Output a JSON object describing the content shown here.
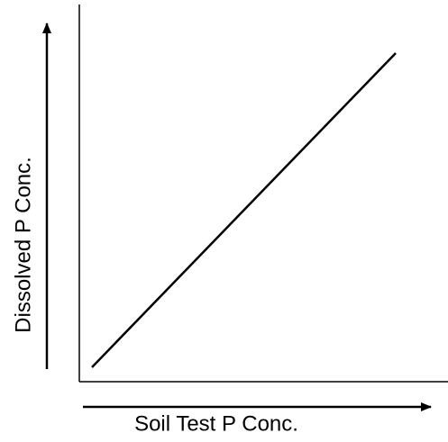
{
  "x_label": "Soil Test P Conc.",
  "y_label": "Dissolved P Conc."
}
